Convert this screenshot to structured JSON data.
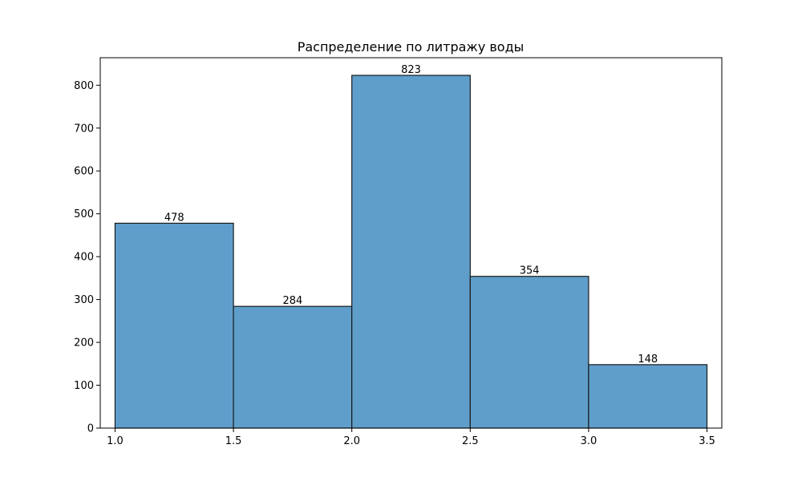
{
  "chart_data": {
    "type": "bar",
    "title": "Распределение по литражу воды",
    "xlabel": "",
    "ylabel": "",
    "bins": [
      {
        "x0": 1.0,
        "x1": 1.5,
        "value": 478,
        "label": "478"
      },
      {
        "x0": 1.5,
        "x1": 2.0,
        "value": 284,
        "label": "284"
      },
      {
        "x0": 2.0,
        "x1": 2.5,
        "value": 823,
        "label": "823"
      },
      {
        "x0": 2.5,
        "x1": 3.0,
        "value": 354,
        "label": "354"
      },
      {
        "x0": 3.0,
        "x1": 3.5,
        "value": 148,
        "label": "148"
      }
    ],
    "xlim": [
      0.9375,
      3.5625
    ],
    "ylim": [
      0,
      864.15
    ],
    "xticks": [
      {
        "value": 1.0,
        "label": "1.0"
      },
      {
        "value": 1.5,
        "label": "1.5"
      },
      {
        "value": 2.0,
        "label": "2.0"
      },
      {
        "value": 2.5,
        "label": "2.5"
      },
      {
        "value": 3.0,
        "label": "3.0"
      },
      {
        "value": 3.5,
        "label": "3.5"
      }
    ],
    "yticks": [
      {
        "value": 0,
        "label": "0"
      },
      {
        "value": 100,
        "label": "100"
      },
      {
        "value": 200,
        "label": "200"
      },
      {
        "value": 300,
        "label": "300"
      },
      {
        "value": 400,
        "label": "400"
      },
      {
        "value": 500,
        "label": "500"
      },
      {
        "value": 600,
        "label": "600"
      },
      {
        "value": 700,
        "label": "700"
      },
      {
        "value": 800,
        "label": "800"
      }
    ],
    "grid": false,
    "legend": "none",
    "colors": {
      "bar_fill": "#5f9ecb",
      "bar_edge": "#1a1a1a"
    }
  }
}
